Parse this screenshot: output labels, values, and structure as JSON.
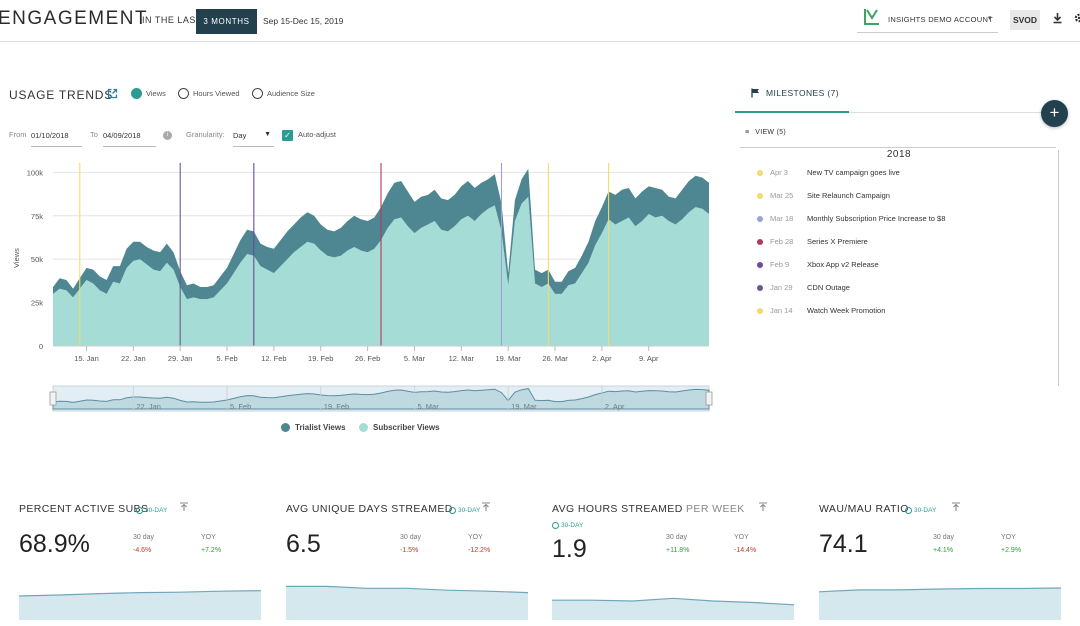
{
  "header": {
    "title": "ENGAGEMENT",
    "in_the_last": "IN THE LAST",
    "range_button": "3 MONTHS",
    "range_dates": "Sep 15-Dec 15, 2019",
    "account": "INSIGHTS DEMO ACCOUNT",
    "svod": "SVOD",
    "icons": [
      "download-icon",
      "gear-icon"
    ]
  },
  "usage_trends": {
    "title": "USAGE TRENDS",
    "metrics": [
      {
        "label": "Views",
        "selected": true
      },
      {
        "label": "Hours Viewed",
        "selected": false
      },
      {
        "label": "Audience Size",
        "selected": false
      }
    ],
    "from_label": "From",
    "from_value": "01/10/2018",
    "to_label": "To",
    "to_value": "04/09/2018",
    "granularity_label": "Granularity:",
    "granularity_value": "Day",
    "auto_adjust_label": "Auto-adjust",
    "auto_adjust_checked": true
  },
  "chart_data": {
    "type": "area",
    "stacked": true,
    "ylabel": "Views",
    "ylim": [
      0,
      110000
    ],
    "y_ticks": [
      "0",
      "25k",
      "50k",
      "75k",
      "100k"
    ],
    "y_tick_values": [
      0,
      25000,
      50000,
      75000,
      100000
    ],
    "x_start": "2018-01-10",
    "x_ticks": [
      "15. Jan",
      "22. Jan",
      "29. Jan",
      "5. Feb",
      "12. Feb",
      "19. Feb",
      "26. Feb",
      "5. Mar",
      "12. Mar",
      "19. Mar",
      "26. Mar",
      "2. Apr",
      "9. Apr"
    ],
    "navigator_ticks": [
      "22. Jan",
      "5. Feb",
      "19. Feb",
      "5. Mar",
      "19. Mar",
      "2. Apr"
    ],
    "series": [
      {
        "name": "Subscriber Views",
        "color": "#a6dcd6",
        "values": [
          30000,
          33000,
          32000,
          28000,
          33000,
          38000,
          36000,
          32000,
          30000,
          37000,
          36000,
          45000,
          49000,
          50000,
          47000,
          44000,
          43000,
          48000,
          44000,
          34000,
          27000,
          28000,
          27000,
          27000,
          28000,
          32000,
          36000,
          42000,
          48000,
          53000,
          52000,
          46000,
          44000,
          42000,
          46000,
          50000,
          54000,
          57000,
          60000,
          59000,
          55000,
          52000,
          51000,
          52000,
          55000,
          57000,
          55000,
          54000,
          56000,
          61000,
          68000,
          73000,
          74000,
          69000,
          65000,
          68000,
          70000,
          72000,
          67000,
          66000,
          69000,
          73000,
          75000,
          72000,
          76000,
          79000,
          81000,
          66000,
          35000,
          72000,
          82000,
          86000,
          36000,
          34000,
          36000,
          30000,
          30000,
          35000,
          36000,
          42000,
          48000,
          58000,
          65000,
          73000,
          70000,
          72000,
          74000,
          69000,
          72000,
          76000,
          74000,
          75000,
          72000,
          70000,
          73000,
          77000,
          80000,
          79000,
          76000
        ]
      },
      {
        "name": "Trialist Views",
        "color": "#4e8791",
        "values": [
          4000,
          6000,
          6000,
          5000,
          6000,
          7000,
          8000,
          8000,
          8000,
          9000,
          10000,
          11000,
          11000,
          10000,
          10000,
          11000,
          11000,
          11000,
          10000,
          9000,
          8000,
          8000,
          7000,
          7000,
          7000,
          8000,
          9000,
          11000,
          13000,
          14000,
          14000,
          13000,
          13000,
          14000,
          15000,
          16000,
          16000,
          17000,
          17000,
          16000,
          15000,
          15000,
          15000,
          16000,
          17000,
          18000,
          18000,
          18000,
          18000,
          19000,
          20000,
          21000,
          21000,
          20000,
          18000,
          18000,
          17000,
          18000,
          18000,
          18000,
          18000,
          19000,
          20000,
          19000,
          18000,
          17000,
          18000,
          16000,
          7000,
          12000,
          14000,
          16000,
          8000,
          8000,
          8000,
          7000,
          7000,
          8000,
          9000,
          10000,
          12000,
          14000,
          15000,
          16000,
          17000,
          18000,
          17000,
          16000,
          17000,
          16000,
          17000,
          15000,
          14000,
          15000,
          17000,
          18000,
          18000,
          18000,
          18000
        ]
      }
    ],
    "milestone_lines": [
      {
        "date": "Jan 14",
        "color": "#f2dc6b"
      },
      {
        "date": "Jan 29",
        "color": "#6a5a8a"
      },
      {
        "date": "Feb 9",
        "color": "#6a4a9a"
      },
      {
        "date": "Feb 28",
        "color": "#b03a5b"
      },
      {
        "date": "Mar 18",
        "color": "#9aa0d8"
      },
      {
        "date": "Mar 25",
        "color": "#f2dc6b"
      },
      {
        "date": "Apr 3",
        "color": "#f2dc6b"
      }
    ]
  },
  "legend": [
    {
      "label": "Trialist Views",
      "color": "#4e8791"
    },
    {
      "label": "Subscriber Views",
      "color": "#a6dcd6"
    }
  ],
  "milestones": {
    "tab_label": "MILESTONES (7)",
    "view_label": "VIEW (5)",
    "year": "2018",
    "items": [
      {
        "date": "Apr 3",
        "name": "New TV campaign goes live",
        "color": "#f2dc6b"
      },
      {
        "date": "Mar 25",
        "name": "Site Relaunch Campaign",
        "color": "#f2dc6b"
      },
      {
        "date": "Mar 18",
        "name": "Monthly Subscription Price Increase to $8",
        "color": "#9aa0d8"
      },
      {
        "date": "Feb 28",
        "name": "Series X Premiere",
        "color": "#b03a5b"
      },
      {
        "date": "Feb 9",
        "name": "Xbox App v2 Release",
        "color": "#6a4a9a"
      },
      {
        "date": "Jan 29",
        "name": "CDN Outage",
        "color": "#6a5a8a"
      },
      {
        "date": "Jan 14",
        "name": "Watch Week Promotion",
        "color": "#f2dc6b"
      }
    ]
  },
  "kpis": [
    {
      "title": "PERCENT ACTIVE SUBS",
      "subtitle": "",
      "period": "30-DAY",
      "value": "68.9%",
      "c1_label": "30 day",
      "c1_value": "-4.6%",
      "c1_sign": "neg",
      "c2_label": "YOY",
      "c2_value": "+7.2%",
      "c2_sign": "pos",
      "spark": [
        0.5,
        0.52,
        0.55,
        0.57,
        0.58,
        0.6,
        0.61
      ]
    },
    {
      "title": "AVG UNIQUE DAYS STREAMED",
      "subtitle": "",
      "period": "30-DAY",
      "value": "6.5",
      "c1_label": "30 day",
      "c1_value": "-1.5%",
      "c1_sign": "neg",
      "c2_label": "YOY",
      "c2_value": "-12.2%",
      "c2_sign": "neg",
      "spark": [
        0.7,
        0.7,
        0.66,
        0.66,
        0.62,
        0.6,
        0.57
      ]
    },
    {
      "title": "AVG HOURS STREAMED",
      "subtitle": "PER WEEK",
      "period": "30-DAY",
      "value": "1.9",
      "c1_label": "30 day",
      "c1_value": "+11.8%",
      "c1_sign": "pos",
      "c2_label": "YOY",
      "c2_value": "-14.4%",
      "c2_sign": "neg",
      "spark": [
        0.52,
        0.52,
        0.5,
        0.57,
        0.5,
        0.46,
        0.4
      ]
    },
    {
      "title": "WAU/MAU RATIO",
      "subtitle": "",
      "period": "30-DAY",
      "value": "74.1",
      "c1_label": "30 day",
      "c1_value": "+4.1%",
      "c1_sign": "pos",
      "c2_label": "YOY",
      "c2_value": "+2.9%",
      "c2_sign": "pos",
      "spark": [
        0.6,
        0.64,
        0.64,
        0.66,
        0.67,
        0.67,
        0.68
      ]
    }
  ]
}
